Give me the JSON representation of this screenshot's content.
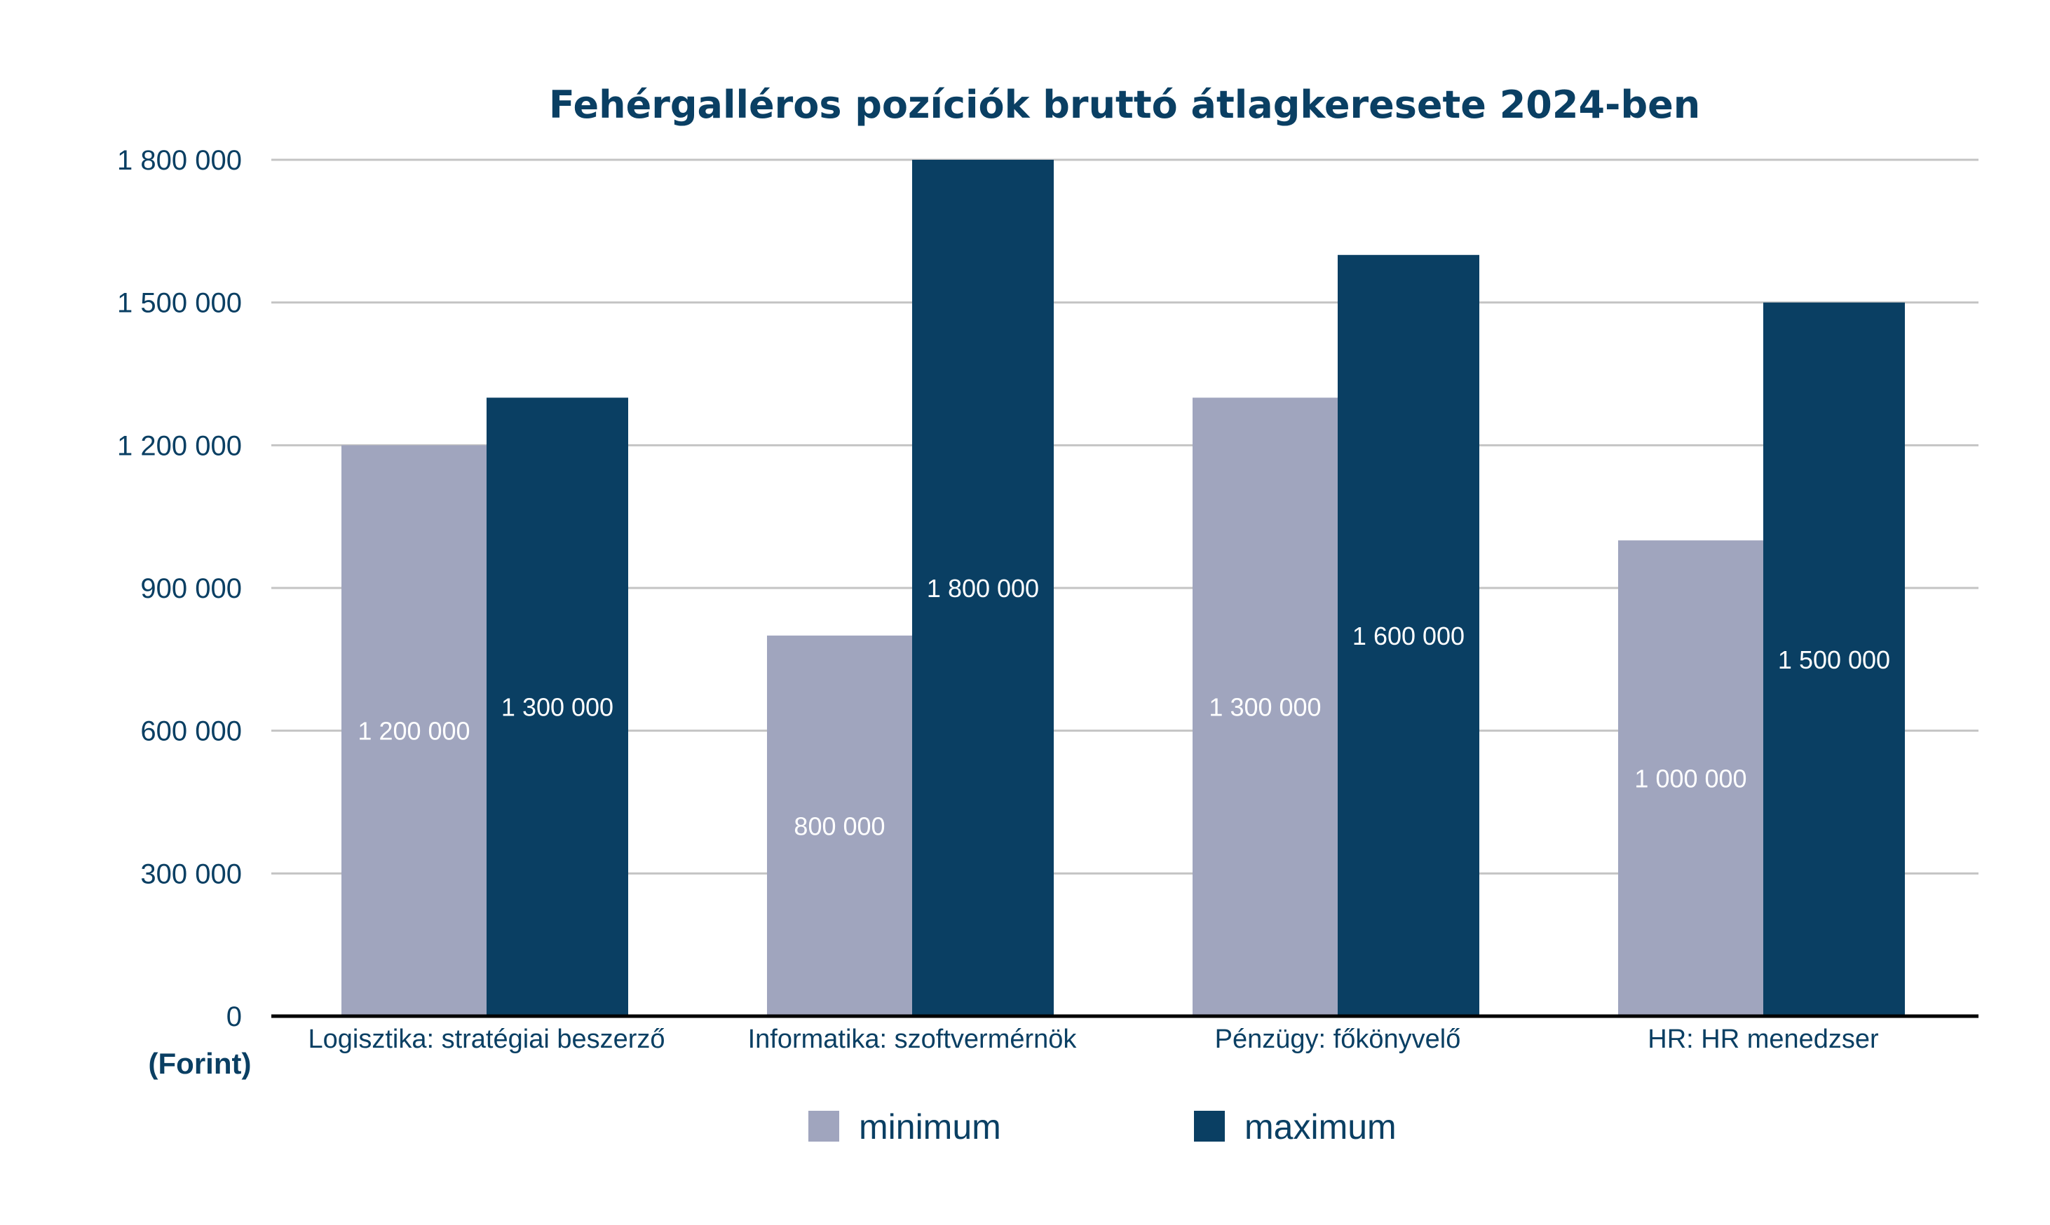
{
  "chart_data": {
    "type": "bar",
    "title": "Fehérgalléros pozíciók bruttó átlagkeresete 2024-ben",
    "unit_label": "(Forint)",
    "categories": [
      "Logisztika: stratégiai beszerző",
      "Informatika: szoftvermérnök",
      "Pénzügy: főkönyvelő",
      "HR: HR menedzser"
    ],
    "series": [
      {
        "name": "minimum",
        "color": "#a0a5be",
        "values": [
          1200000,
          800000,
          1300000,
          1000000
        ],
        "labels": [
          "1 200 000",
          "800 000",
          "1 300 000",
          "1 000 000"
        ]
      },
      {
        "name": "maximum",
        "color": "#0a3f63",
        "values": [
          1300000,
          1800000,
          1600000,
          1500000
        ],
        "labels": [
          "1 300 000",
          "1 800 000",
          "1 600 000",
          "1 500 000"
        ]
      }
    ],
    "ylim": [
      0,
      1800000
    ],
    "yticks": [
      0,
      300000,
      600000,
      900000,
      1200000,
      1500000,
      1800000
    ],
    "ytick_labels": [
      "0",
      "300 000",
      "600 000",
      "900 000",
      "1 200 000",
      "1 500 000",
      "1 800 000"
    ],
    "grid": true,
    "legend_position": "bottom",
    "gridline_color": "#c4c4c4",
    "axis_color": "#000000"
  }
}
